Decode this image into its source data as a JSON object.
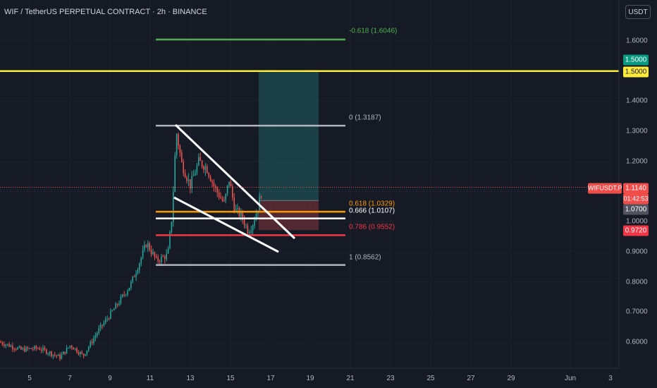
{
  "header": {
    "title": "WIF / TetherUS PERPETUAL CONTRACT · 2h · BINANCE"
  },
  "currency_button": {
    "label": "USDT"
  },
  "price_axis": {
    "ticks": [
      "1.6000",
      "1.4000",
      "1.3000",
      "1.2000",
      "1.1000",
      "1.0000",
      "0.9000",
      "0.8000",
      "0.7000",
      "0.6000"
    ],
    "tick_values": [
      1.6,
      1.4,
      1.3,
      1.2,
      1.1,
      1.0,
      0.9,
      0.8,
      0.7,
      0.6
    ]
  },
  "time_axis": {
    "ticks": [
      "5",
      "7",
      "9",
      "11",
      "13",
      "15",
      "17",
      "19",
      "21",
      "23",
      "25",
      "27",
      "29",
      "Jun",
      "3"
    ]
  },
  "price_tags": {
    "target_green": "1.5000",
    "target_yellow": "1.5000",
    "symbol": "WIFUSDT.P",
    "last_price": "1.1140",
    "countdown": "01:42:53",
    "entry": "1.0700",
    "stop": "0.9720"
  },
  "fib_levels": [
    {
      "label": "-0.618 (1.6046)",
      "price": 1.6046,
      "color": "#4caf50"
    },
    {
      "label": "0 (1.3187)",
      "price": 1.3187,
      "color": "#b2b5be"
    },
    {
      "label": "0.618 (1.0329)",
      "price": 1.0329,
      "color": "#ff9800"
    },
    {
      "label": "0.666 (1.0107)",
      "price": 1.0107,
      "color": "#ffffff"
    },
    {
      "label": "0.786 (0.9552)",
      "price": 0.9552,
      "color": "#f23645"
    },
    {
      "label": "1 (0.8562)",
      "price": 0.8562,
      "color": "#b2b5be"
    }
  ],
  "horizontal_line": {
    "price": 1.5,
    "color": "#ffeb3b"
  },
  "position": {
    "entry": 1.07,
    "target": 1.5,
    "stop": 0.972
  },
  "colors": {
    "background": "#161a25",
    "up": "#26a69a",
    "down": "#ef5350",
    "axis_text": "#b2b5be"
  }
}
